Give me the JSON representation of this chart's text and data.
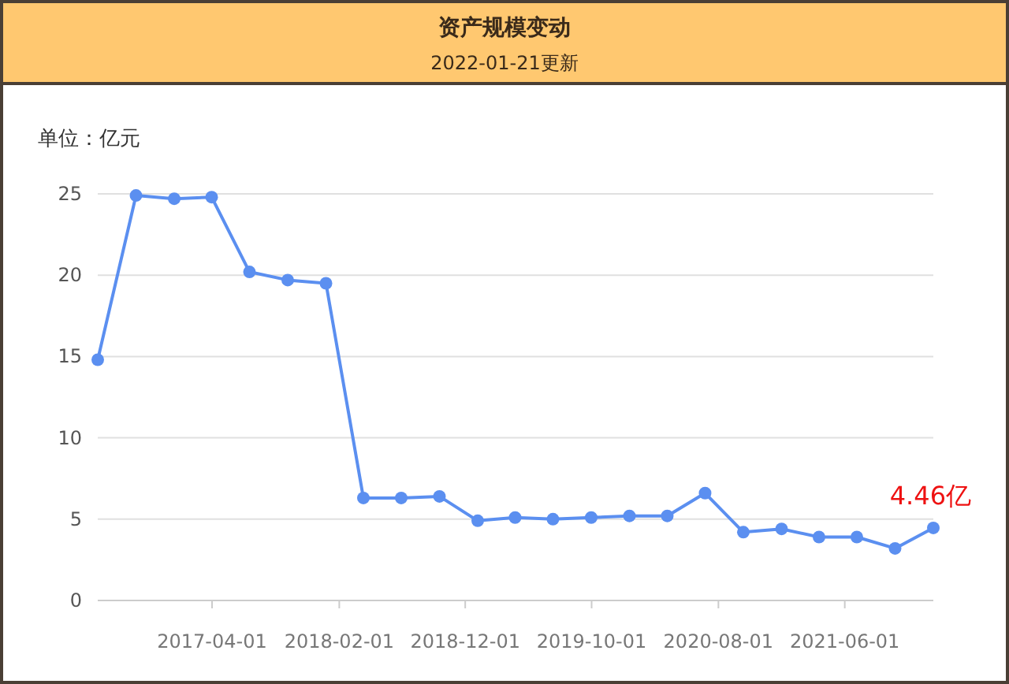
{
  "chart_data": {
    "type": "line",
    "title": "资产规模变动",
    "subtitle": "2022-01-21更新",
    "ylabel": "单位：亿元",
    "x": [
      "2016-06-30",
      "2016-09-30",
      "2016-12-31",
      "2017-03-31",
      "2017-06-30",
      "2017-09-30",
      "2017-12-31",
      "2018-03-31",
      "2018-06-30",
      "2018-09-30",
      "2018-12-31",
      "2019-03-31",
      "2019-06-30",
      "2019-09-30",
      "2019-12-31",
      "2020-03-31",
      "2020-06-30",
      "2020-09-30",
      "2020-12-31",
      "2021-03-31",
      "2021-06-30",
      "2021-09-30",
      "2021-12-31"
    ],
    "series": [
      {
        "color": "#5b8ff0",
        "values": [
          14.8,
          24.9,
          24.7,
          24.8,
          20.2,
          19.7,
          19.5,
          6.3,
          6.3,
          6.4,
          4.9,
          5.1,
          5.0,
          5.1,
          5.2,
          5.2,
          6.6,
          4.2,
          4.4,
          3.9,
          3.9,
          3.2,
          4.46
        ]
      }
    ],
    "xlim": [
      "2016-06-30",
      "2021-12-31"
    ],
    "xticks": [
      "2017-04-01",
      "2018-02-01",
      "2018-12-01",
      "2019-10-01",
      "2020-08-01",
      "2021-06-01"
    ],
    "ylim": [
      0,
      25
    ],
    "yticks": [
      0,
      5,
      10,
      15,
      20,
      25
    ],
    "grid": "y",
    "marker": "circle",
    "line_style": "solid",
    "annotations": [
      {
        "text": "4.46亿",
        "x": "2021-12-31",
        "y": 4.46
      }
    ]
  }
}
